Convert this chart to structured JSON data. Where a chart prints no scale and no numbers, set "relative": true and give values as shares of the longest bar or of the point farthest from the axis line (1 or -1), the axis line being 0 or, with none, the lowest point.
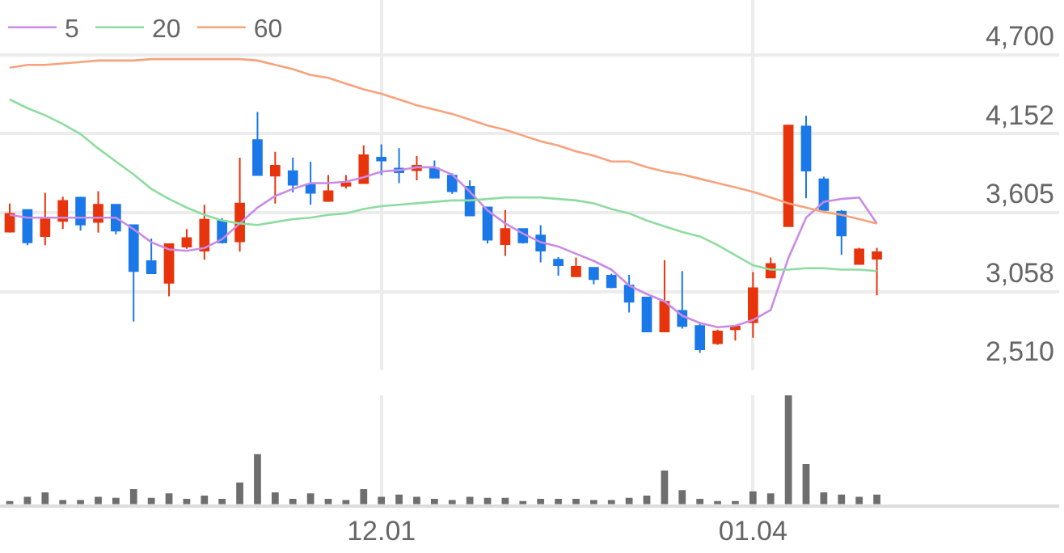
{
  "chart_data": [
    {
      "type": "candlestick",
      "categories": [
        null,
        null,
        null,
        null,
        null,
        null,
        null,
        null,
        null,
        null,
        null,
        null,
        null,
        null,
        null,
        null,
        null,
        null,
        null,
        null,
        null,
        "12.01",
        null,
        null,
        null,
        null,
        null,
        null,
        null,
        null,
        null,
        null,
        null,
        null,
        null,
        null,
        null,
        null,
        null,
        null,
        null,
        null,
        "01.04",
        null,
        null,
        null,
        null,
        null,
        null,
        null
      ],
      "ohlc": [
        [
          3473,
          3668,
          3466,
          3597
        ],
        [
          3623,
          3623,
          3380,
          3399
        ],
        [
          3443,
          3743,
          3380,
          3559
        ],
        [
          3548,
          3716,
          3492,
          3686
        ],
        [
          3709,
          3716,
          3481,
          3522
        ],
        [
          3541,
          3754,
          3466,
          3660
        ],
        [
          3660,
          3660,
          3455,
          3481
        ],
        [
          3518,
          3518,
          2849,
          3200
        ],
        [
          3268,
          3425,
          3185,
          3185
        ],
        [
          3118,
          3387,
          3025,
          3387
        ],
        [
          3369,
          3492,
          3354,
          3428
        ],
        [
          3342,
          3660,
          3279,
          3556
        ],
        [
          3548,
          3567,
          3391,
          3399
        ],
        [
          3406,
          3986,
          3335,
          3668
        ],
        [
          4109,
          4304,
          3866,
          3866
        ],
        [
          3862,
          4027,
          3668,
          3930
        ],
        [
          3892,
          3986,
          3746,
          3799
        ],
        [
          3799,
          3959,
          3660,
          3743
        ],
        [
          3686,
          3866,
          3679,
          3754
        ],
        [
          3791,
          3866,
          3772,
          3810
        ],
        [
          3810,
          4072,
          3810,
          4004
        ],
        [
          3986,
          4079,
          3866,
          3967
        ],
        [
          3911,
          4053,
          3810,
          3885
        ],
        [
          3900,
          3997,
          3829,
          3930
        ],
        [
          3911,
          3967,
          3847,
          3847
        ],
        [
          3862,
          3877,
          3735,
          3754
        ],
        [
          3784,
          3829,
          3585,
          3585
        ],
        [
          3642,
          3642,
          3391,
          3417
        ],
        [
          3387,
          3623,
          3305,
          3492
        ],
        [
          3492,
          3492,
          3391,
          3399
        ],
        [
          3447,
          3518,
          3260,
          3342
        ],
        [
          3279,
          3297,
          3167,
          3241
        ],
        [
          3163,
          3294,
          3163,
          3230
        ],
        [
          3223,
          3223,
          3107,
          3144
        ],
        [
          3167,
          3182,
          3081,
          3088
        ],
        [
          3099,
          3174,
          2912,
          2987
        ],
        [
          3017,
          3017,
          2781,
          2781
        ],
        [
          2781,
          3275,
          2781,
          2987
        ],
        [
          2924,
          3200,
          2800,
          2819
        ],
        [
          2819,
          2845,
          2632,
          2658
        ],
        [
          2699,
          2793,
          2688,
          2781
        ],
        [
          2796,
          2826,
          2718,
          2815
        ],
        [
          2845,
          3193,
          2737,
          3081
        ],
        [
          3155,
          3294,
          3155,
          3249
        ],
        [
          3511,
          4210,
          3511,
          4210
        ],
        [
          4203,
          4277,
          3705,
          3896
        ],
        [
          3836,
          3855,
          3623,
          3623
        ],
        [
          3612,
          3623,
          3312,
          3447
        ],
        [
          3249,
          3361,
          3249,
          3350
        ],
        [
          3286,
          3361,
          3032,
          3331
        ]
      ],
      "colors": [
        "#e8340c",
        "#1b78e8",
        "#e8340c",
        "#e8340c",
        "#1b78e8",
        "#e8340c",
        "#1b78e8",
        "#1b78e8",
        "#1b78e8",
        "#e8340c",
        "#e8340c",
        "#e8340c",
        "#1b78e8",
        "#e8340c",
        "#1b78e8",
        "#e8340c",
        "#1b78e8",
        "#1b78e8",
        "#e8340c",
        "#e8340c",
        "#e8340c",
        "#1b78e8",
        "#1b78e8",
        "#e8340c",
        "#1b78e8",
        "#1b78e8",
        "#1b78e8",
        "#1b78e8",
        "#e8340c",
        "#1b78e8",
        "#1b78e8",
        "#1b78e8",
        "#e8340c",
        "#1b78e8",
        "#1b78e8",
        "#1b78e8",
        "#1b78e8",
        "#e8340c",
        "#1b78e8",
        "#1b78e8",
        "#e8340c",
        "#e8340c",
        "#e8340c",
        "#e8340c",
        "#e8340c",
        "#1b78e8",
        "#1b78e8",
        "#1b78e8",
        "#e8340c",
        "#e8340c"
      ],
      "series": [
        {
          "name": "5",
          "type": "line",
          "color": "#c98be6",
          "values": [
            3590,
            3570,
            3570,
            3570,
            3570,
            3570,
            3570,
            3490,
            3400,
            3350,
            3340,
            3360,
            3420,
            3530,
            3640,
            3720,
            3770,
            3810,
            3810,
            3820,
            3850,
            3890,
            3900,
            3920,
            3920,
            3870,
            3750,
            3620,
            3530,
            3460,
            3400,
            3370,
            3320,
            3270,
            3210,
            3100,
            3040,
            2990,
            2890,
            2840,
            2810,
            2820,
            2860,
            2930,
            3290,
            3570,
            3680,
            3700,
            3710,
            3530
          ]
        },
        {
          "name": "20",
          "type": "line",
          "color": "#8edc9f",
          "values": [
            4390,
            4330,
            4280,
            4220,
            4150,
            4050,
            3960,
            3870,
            3770,
            3700,
            3640,
            3590,
            3550,
            3530,
            3520,
            3540,
            3560,
            3570,
            3590,
            3600,
            3630,
            3650,
            3660,
            3670,
            3680,
            3690,
            3690,
            3700,
            3710,
            3710,
            3710,
            3700,
            3690,
            3670,
            3630,
            3600,
            3550,
            3510,
            3470,
            3440,
            3380,
            3310,
            3240,
            3210,
            3210,
            3220,
            3220,
            3210,
            3210,
            3200
          ]
        },
        {
          "name": "60",
          "type": "line",
          "color": "#f7a27c",
          "values": [
            4610,
            4630,
            4630,
            4640,
            4650,
            4660,
            4660,
            4660,
            4670,
            4670,
            4670,
            4670,
            4670,
            4670,
            4660,
            4630,
            4600,
            4560,
            4540,
            4500,
            4460,
            4430,
            4390,
            4350,
            4320,
            4290,
            4250,
            4210,
            4180,
            4140,
            4100,
            4070,
            4030,
            4000,
            3960,
            3960,
            3920,
            3890,
            3870,
            3840,
            3810,
            3780,
            3750,
            3710,
            3670,
            3640,
            3610,
            3590,
            3560,
            3530
          ]
        }
      ],
      "ylim": [
        2510,
        5080
      ],
      "yticks": [
        {
          "value": 2510,
          "label": "2,510"
        },
        {
          "value": 3058,
          "label": "3,058"
        },
        {
          "value": 3605,
          "label": "3,605"
        },
        {
          "value": 4152,
          "label": "4,152"
        },
        {
          "value": 4700,
          "label": "4,700"
        }
      ],
      "grid": true,
      "legend": "top left",
      "tick_labels": "y"
    },
    {
      "type": "bar",
      "relative": true,
      "color": "#6e6e6e",
      "tick_labels": "x",
      "grid": "x",
      "categories": [
        null,
        null,
        null,
        null,
        null,
        null,
        null,
        null,
        null,
        null,
        null,
        null,
        null,
        null,
        null,
        null,
        null,
        null,
        null,
        null,
        null,
        "12.01",
        null,
        null,
        null,
        null,
        null,
        null,
        null,
        null,
        null,
        null,
        null,
        null,
        null,
        null,
        null,
        null,
        null,
        null,
        null,
        null,
        "01.04",
        null,
        null,
        null,
        null,
        null,
        null,
        null
      ],
      "values": [
        0.03,
        0.07,
        0.11,
        0.04,
        0.04,
        0.07,
        0.06,
        0.14,
        0.06,
        0.1,
        0.05,
        0.08,
        0.05,
        0.2,
        0.46,
        0.11,
        0.05,
        0.1,
        0.05,
        0.04,
        0.14,
        0.07,
        0.09,
        0.07,
        0.05,
        0.04,
        0.07,
        0.06,
        0.06,
        0.03,
        0.05,
        0.05,
        0.05,
        0.04,
        0.04,
        0.06,
        0.08,
        0.31,
        0.13,
        0.05,
        0.03,
        0.03,
        0.12,
        0.1,
        1,
        0.37,
        0.11,
        0.09,
        0.07,
        0.09
      ]
    }
  ]
}
